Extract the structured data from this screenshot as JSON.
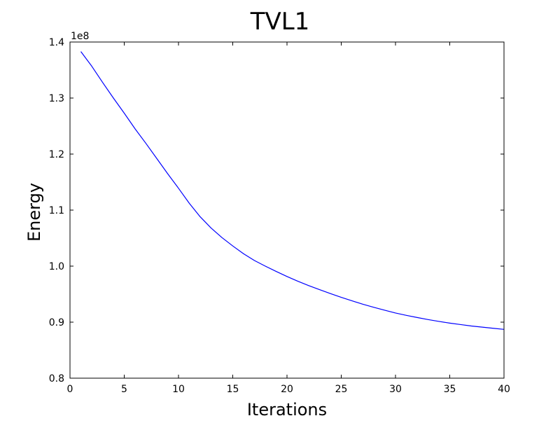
{
  "chart_data": {
    "type": "line",
    "title": "TVL1",
    "xlabel": "Iterations",
    "ylabel": "Energy",
    "y_multiplier_label": "1e8",
    "xlim": [
      0,
      40
    ],
    "ylim": [
      0.8,
      1.4
    ],
    "x_ticks": [
      0,
      5,
      10,
      15,
      20,
      25,
      30,
      35,
      40
    ],
    "x_tick_labels": [
      "0",
      "5",
      "10",
      "15",
      "20",
      "25",
      "30",
      "35",
      "40"
    ],
    "y_ticks": [
      0.8,
      0.9,
      1.0,
      1.1,
      1.2,
      1.3,
      1.4
    ],
    "y_tick_labels": [
      "0.8",
      "0.9",
      "1.0",
      "1.1",
      "1.2",
      "1.3",
      "1.4"
    ],
    "grid": false,
    "legend": false,
    "series": [
      {
        "color": "#0000ff",
        "x": [
          1,
          2,
          3,
          4,
          5,
          6,
          7,
          8,
          9,
          10,
          11,
          12,
          13,
          14,
          15,
          16,
          17,
          18,
          19,
          20,
          21,
          22,
          23,
          24,
          25,
          26,
          27,
          28,
          29,
          30,
          31,
          32,
          33,
          34,
          35,
          36,
          37,
          38,
          39,
          40
        ],
        "y": [
          1.383,
          1.357,
          1.328,
          1.3,
          1.273,
          1.245,
          1.219,
          1.192,
          1.165,
          1.139,
          1.112,
          1.088,
          1.068,
          1.051,
          1.036,
          1.022,
          1.01,
          1.0,
          0.9905,
          0.9815,
          0.973,
          0.9653,
          0.958,
          0.951,
          0.9443,
          0.938,
          0.932,
          0.9265,
          0.9213,
          0.9163,
          0.9121,
          0.9083,
          0.9046,
          0.9013,
          0.8983,
          0.8957,
          0.8931,
          0.8911,
          0.8891,
          0.8871
        ]
      }
    ]
  }
}
